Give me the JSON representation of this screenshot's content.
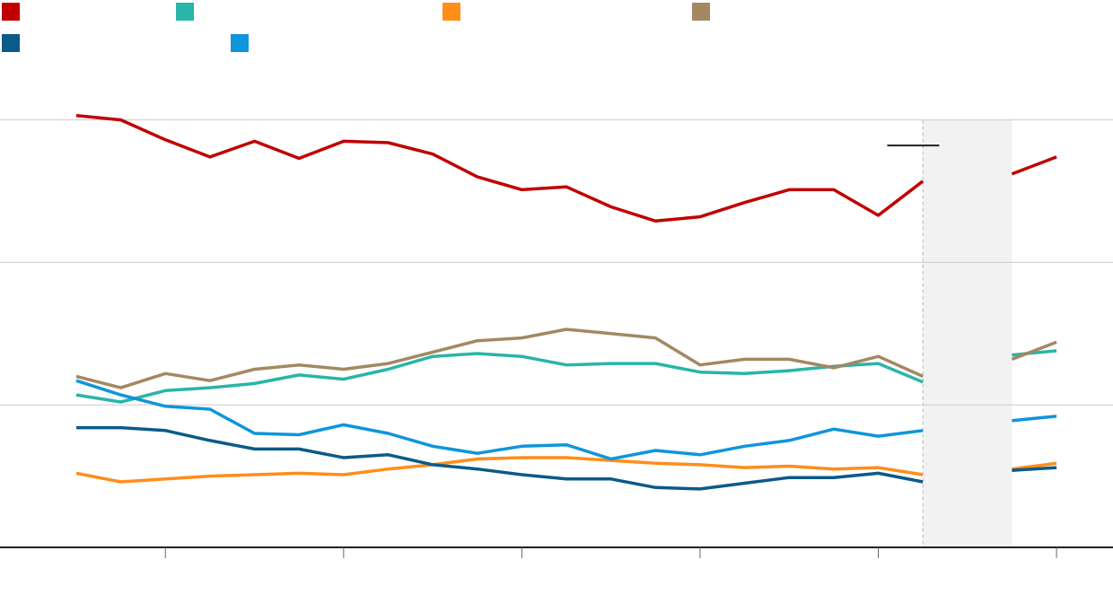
{
  "chart_data": {
    "type": "line",
    "title": "",
    "xlabel": "",
    "ylabel": "",
    "x": [
      1,
      2,
      3,
      4,
      5,
      6,
      7,
      8,
      9,
      10,
      11,
      12,
      13,
      14,
      15,
      16,
      17,
      18,
      19,
      20,
      21,
      22,
      23
    ],
    "ylim": [
      0,
      300
    ],
    "gridlines": [
      0,
      100,
      200,
      300
    ],
    "grid": true,
    "xticks": [
      3,
      7,
      11,
      15,
      19,
      23
    ],
    "shaded_x_range": [
      20,
      22
    ],
    "legend": "top",
    "series": [
      {
        "color": "#c00000",
        "values": [
          303,
          300,
          286,
          274,
          285,
          273,
          285,
          284,
          276,
          260,
          251,
          253,
          239,
          229,
          232,
          242,
          251,
          251,
          233,
          257,
          null,
          262,
          274
        ]
      },
      {
        "color": "#29b5a8",
        "values": [
          107,
          102,
          110,
          112,
          115,
          121,
          118,
          125,
          134,
          136,
          134,
          128,
          129,
          129,
          123,
          122,
          124,
          127,
          129,
          116,
          null,
          135,
          138
        ]
      },
      {
        "color": "#ff8d1b",
        "values": [
          52,
          46,
          48,
          50,
          51,
          52,
          51,
          55,
          58,
          62,
          63,
          63,
          61,
          59,
          58,
          56,
          57,
          55,
          56,
          51,
          null,
          55,
          59
        ]
      },
      {
        "color": "#a38862",
        "values": [
          120,
          112,
          122,
          117,
          125,
          128,
          125,
          129,
          137,
          145,
          147,
          153,
          150,
          147,
          128,
          132,
          132,
          126,
          134,
          120,
          null,
          132,
          144
        ]
      },
      {
        "color": "#0b5a8a",
        "values": [
          84,
          84,
          82,
          75,
          69,
          69,
          63,
          65,
          58,
          55,
          51,
          48,
          48,
          42,
          41,
          45,
          49,
          49,
          52,
          46,
          null,
          54,
          56
        ]
      },
      {
        "color": "#0f95dc",
        "values": [
          117,
          107,
          99,
          97,
          80,
          79,
          86,
          80,
          71,
          66,
          71,
          72,
          62,
          68,
          65,
          71,
          75,
          83,
          78,
          82,
          null,
          89,
          92
        ]
      }
    ]
  },
  "annotation_line": {
    "x": 19.2,
    "y": 282
  }
}
